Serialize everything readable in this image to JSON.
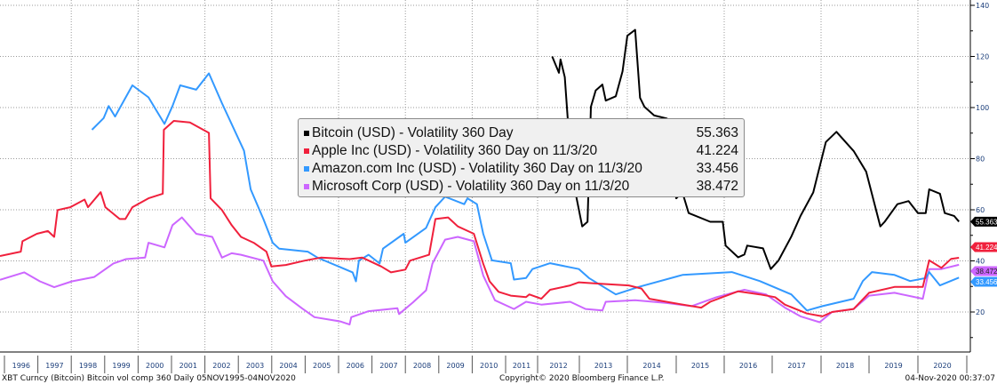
{
  "chart_data": {
    "type": "line",
    "title": "",
    "xlabel": "",
    "ylabel": "",
    "y_axis_side": "right",
    "ylim": [
      0,
      140
    ],
    "yticks": [
      20,
      40,
      60,
      80,
      100,
      120,
      140
    ],
    "xlim": [
      1995.84,
      2020.84
    ],
    "xtick_labels": [
      "1996",
      "1997",
      "1998",
      "1999",
      "2000",
      "2001",
      "2002",
      "2003",
      "2004",
      "2005",
      "2006",
      "2007",
      "2008",
      "2009",
      "2010",
      "2011",
      "2012",
      "2013",
      "2014",
      "2015",
      "2016",
      "2017",
      "2018",
      "2019",
      "2020"
    ],
    "grid": true,
    "legend_placement": "center",
    "series": [
      {
        "name": "Bitcoin (USD) - Volatility 360 Day",
        "last_value": "55.363",
        "color": "#000000",
        "x": [
          2012.35,
          2012.51,
          2012.55,
          2012.65,
          2012.75,
          2012.92,
          2013.06,
          2013.17,
          2013.24,
          2013.34,
          2013.48,
          2013.55,
          2013.76,
          2013.9,
          2014.0,
          2014.16,
          2014.26,
          2014.35,
          2014.55,
          2014.81,
          2014.9,
          2015.0,
          2015.13,
          2015.26,
          2015.71,
          2015.97,
          2016.03,
          2016.29,
          2016.42,
          2016.48,
          2016.81,
          2016.97,
          2017.13,
          2017.39,
          2017.58,
          2017.84,
          2018.1,
          2018.32,
          2018.68,
          2018.94,
          2019.23,
          2019.32,
          2019.58,
          2019.81,
          2020.0,
          2020.16,
          2020.23,
          2020.45,
          2020.55,
          2020.74,
          2020.84
        ],
        "y": [
          120,
          113.6,
          118.8,
          111.9,
          88.8,
          65.7,
          53.5,
          55.3,
          100.3,
          106.7,
          109,
          102.7,
          104.4,
          114.2,
          128.1,
          130.4,
          103.8,
          100.3,
          96.9,
          95.7,
          79.5,
          64.5,
          66.8,
          58.7,
          55.3,
          55.3,
          46,
          41.4,
          42.5,
          46,
          44.9,
          36.8,
          40.2,
          49.5,
          57.6,
          66.8,
          86.5,
          90.5,
          83,
          74.9,
          53.5,
          55.3,
          62.2,
          63.4,
          58.7,
          58.7,
          68,
          66.3,
          58.7,
          57.6,
          55.363
        ]
      },
      {
        "name": "Apple Inc (USD) - Volatility 360 Day on 11/3/20",
        "last_value": "41.224",
        "color": "#f0203c",
        "x": [
          1995.84,
          1996.49,
          1996.54,
          1996.97,
          1997.3,
          1997.49,
          1997.59,
          1997.97,
          1998.4,
          1998.5,
          1998.88,
          1999.02,
          1999.45,
          1999.62,
          1999.83,
          2000.31,
          2000.74,
          2000.77,
          2001.07,
          2001.55,
          2002.12,
          2002.17,
          2002.51,
          2002.8,
          2003.08,
          2003.46,
          2003.84,
          2003.99,
          2004.42,
          2004.99,
          2005.47,
          2006.33,
          2006.71,
          2007.28,
          2007.57,
          2008.0,
          2008.14,
          2008.71,
          2008.9,
          2009.28,
          2009.57,
          2010.05,
          2010.33,
          2010.52,
          2010.79,
          2011.16,
          2011.64,
          2011.74,
          2012.09,
          2012.3,
          2012.78,
          2012.99,
          2013.48,
          2014.03,
          2014.29,
          2014.45,
          2014.94,
          2015.52,
          2015.71,
          2016.29,
          2016.74,
          2017.06,
          2017.26,
          2017.71,
          2018.03,
          2018.23,
          2018.68,
          2019.0,
          2019.52,
          2020.1,
          2020.23,
          2020.48,
          2020.68,
          2020.84
        ],
        "y": [
          41.9,
          43.6,
          47.7,
          50.6,
          51.7,
          49.4,
          59.9,
          61,
          64,
          61,
          66.9,
          61,
          56.4,
          56.4,
          61,
          64.5,
          66.3,
          91.3,
          94.8,
          94.2,
          90.1,
          64.5,
          59.9,
          54,
          49.4,
          47.1,
          43.6,
          37.8,
          38.4,
          40.1,
          41.3,
          40.7,
          41.3,
          37.8,
          35.5,
          36.6,
          40.1,
          42.4,
          56.4,
          57,
          53.5,
          50.6,
          38.9,
          32,
          27.9,
          26.4,
          25.8,
          26.9,
          25.2,
          28.7,
          30.4,
          31.6,
          31,
          30.4,
          29.2,
          25.2,
          23.5,
          21.7,
          24,
          28.1,
          26.9,
          25.8,
          22.9,
          19.4,
          18.3,
          20,
          21.2,
          27.5,
          29.8,
          29.8,
          40.2,
          37.3,
          40.8,
          41.224
        ]
      },
      {
        "name": "Amazon.com Inc (USD) - Volatility 360 Day on 11/3/20",
        "last_value": "33.456",
        "color": "#3399ff",
        "x": [
          1998.62,
          1998.97,
          1999.12,
          1999.31,
          1999.83,
          2000.31,
          2000.79,
          2001.03,
          2001.26,
          2001.74,
          2002.12,
          2002.51,
          2003.17,
          2003.37,
          2003.75,
          2004.03,
          2004.22,
          2005.08,
          2005.37,
          2006.42,
          2006.52,
          2006.61,
          2006.9,
          2007.23,
          2007.33,
          2007.95,
          2008.0,
          2008.62,
          2008.9,
          2009.19,
          2009.76,
          2009.86,
          2010.14,
          2010.33,
          2010.59,
          2011.16,
          2011.26,
          2011.64,
          2011.84,
          2012.3,
          2012.99,
          2013.2,
          2013.76,
          2014.23,
          2015.13,
          2016.16,
          2016.74,
          2017.39,
          2017.71,
          2018.03,
          2018.68,
          2018.87,
          2019.06,
          2019.52,
          2019.84,
          2020.16,
          2020.23,
          2020.45,
          2020.84
        ],
        "y": [
          91.3,
          95.9,
          100.6,
          96.5,
          108.7,
          104,
          93.6,
          100.6,
          108.7,
          107,
          113.4,
          101.7,
          83.1,
          68,
          56.4,
          47.1,
          44.8,
          43.6,
          41.3,
          35.5,
          32,
          40.1,
          42.4,
          39,
          44.8,
          50.6,
          47.1,
          52.9,
          61,
          65.1,
          62.2,
          64.5,
          62.2,
          50.6,
          40.2,
          39.1,
          32.7,
          33.3,
          36.8,
          39.1,
          36.8,
          33.3,
          26.9,
          29.8,
          34.5,
          35.6,
          32.1,
          26.9,
          20.6,
          22.3,
          25.2,
          32.1,
          35.6,
          34.5,
          32.1,
          33.3,
          35.6,
          30.4,
          33.456
        ]
      },
      {
        "name": "Microsoft Corp (USD) - Volatility 360 Day on 11/3/20",
        "last_value": "38.472",
        "color": "#cc66ff",
        "x": [
          1995.84,
          1996.59,
          1997.06,
          1997.49,
          1998.02,
          1998.69,
          1999.26,
          1999.64,
          2000.21,
          2000.31,
          2000.79,
          2001.03,
          2001.31,
          2001.74,
          2002.22,
          2002.51,
          2002.8,
          2003.08,
          2003.75,
          2004.03,
          2004.42,
          2004.9,
          2005.28,
          2006.05,
          2006.33,
          2006.38,
          2006.9,
          2007.76,
          2007.81,
          2008.23,
          2008.62,
          2008.81,
          2009.19,
          2009.57,
          2010.05,
          2010.33,
          2010.68,
          2011.26,
          2011.64,
          2012.09,
          2012.78,
          2013.13,
          2013.48,
          2013.55,
          2014.16,
          2014.81,
          2015.32,
          2015.84,
          2016.42,
          2016.87,
          2017.26,
          2017.58,
          2017.97,
          2018.23,
          2018.68,
          2019.0,
          2019.52,
          2020.1,
          2020.23,
          2020.48,
          2020.84
        ],
        "y": [
          32.6,
          35.5,
          32,
          29.7,
          32,
          33.7,
          39,
          40.7,
          41.3,
          47.1,
          45.3,
          54,
          57,
          50.6,
          49.4,
          41.3,
          43,
          42.4,
          40.1,
          32,
          26.2,
          21.5,
          18,
          16.3,
          15.1,
          18,
          20.3,
          21.5,
          19.2,
          23.8,
          28.5,
          39,
          48.3,
          49.4,
          47.7,
          34.3,
          24.6,
          21.2,
          24,
          22.9,
          24,
          21.2,
          20.6,
          24,
          24.6,
          23.5,
          22.3,
          25.8,
          28.7,
          26.9,
          21.7,
          18.3,
          16,
          20,
          21.2,
          26.4,
          27.5,
          25.2,
          36.8,
          36.8,
          38.472
        ]
      }
    ]
  },
  "footer": {
    "left": "XBT Curncy (Bitcoin) Bitcoin vol comp 360  Daily 05NOV1995-04NOV2020",
    "center": "Copyright© 2020 Bloomberg Finance L.P.",
    "right": "04-Nov-2020 00:37:07"
  }
}
